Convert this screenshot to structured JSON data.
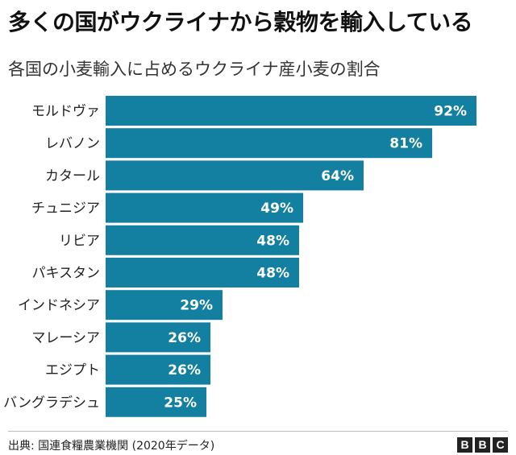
{
  "title": "多くの国がウクライナから穀物を輸入している",
  "subtitle": "各国の小麦輸入に占めるウクライナ産小麦の割合",
  "chart_data": {
    "type": "bar",
    "orientation": "horizontal",
    "categories": [
      "モルドヴァ",
      "レバノン",
      "カタール",
      "チュニジア",
      "リビア",
      "パキスタン",
      "インドネシア",
      "マレーシア",
      "エジプト",
      "バングラデシュ"
    ],
    "values": [
      92,
      81,
      64,
      49,
      48,
      48,
      29,
      26,
      26,
      25
    ],
    "value_labels": [
      "92%",
      "81%",
      "64%",
      "49%",
      "48%",
      "48%",
      "29%",
      "26%",
      "26%",
      "25%"
    ],
    "unit": "%",
    "xlim": [
      0,
      100
    ],
    "grid": false,
    "bar_color": "#1380A1"
  },
  "footer": {
    "source": "出典: 国連食糧農業機関 (2020年データ)",
    "logo_letters": [
      "B",
      "B",
      "C"
    ]
  }
}
